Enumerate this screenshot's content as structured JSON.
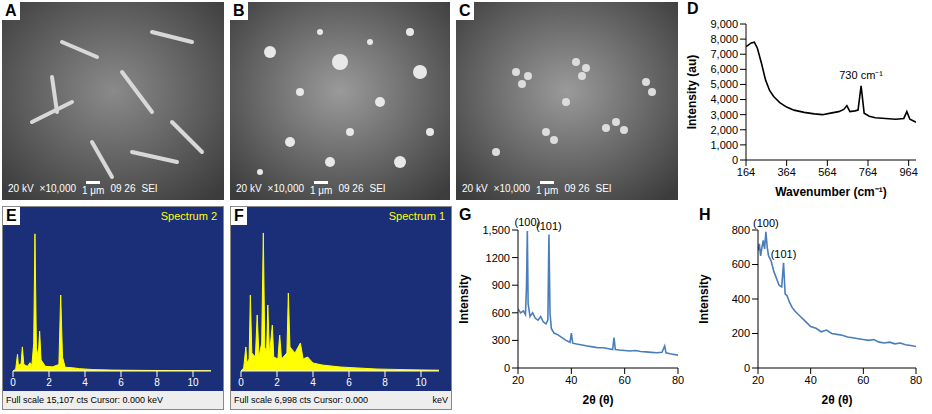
{
  "images": [
    {
      "panel": "A",
      "caption": [
        "20 kV",
        "×10,000",
        "1 μm",
        "09 26",
        "SEI"
      ]
    },
    {
      "panel": "B",
      "caption": [
        "20 kV",
        "×10,000",
        "1 μm",
        "09 26",
        "SEI"
      ]
    },
    {
      "panel": "C",
      "caption": [
        "20 kV",
        "×10,000",
        "1 μm",
        "09 26",
        "SEI"
      ]
    }
  ],
  "chart_data": [
    {
      "panel": "D",
      "type": "line",
      "color": "#000000",
      "x_label": "Wavenumber (cm⁻¹)",
      "y_label": "Intensity (au)",
      "x": [
        164,
        175,
        190,
        205,
        220,
        240,
        260,
        280,
        300,
        330,
        364,
        400,
        450,
        500,
        540,
        580,
        620,
        645,
        660,
        675,
        700,
        715,
        730,
        745,
        770,
        800,
        850,
        900,
        940,
        955,
        970,
        1000
      ],
      "values": [
        7500,
        7600,
        7750,
        7800,
        7400,
        6400,
        5300,
        4600,
        4200,
        3800,
        3500,
        3300,
        3150,
        3050,
        3000,
        3100,
        3200,
        3350,
        3600,
        3200,
        3250,
        3300,
        4900,
        3100,
        2900,
        2800,
        2750,
        2700,
        2750,
        3200,
        2700,
        2500
      ],
      "xlim": [
        164,
        1000
      ],
      "xticks": [
        164,
        364,
        564,
        764,
        964
      ],
      "ylim": [
        0,
        9000
      ],
      "yticks": [
        0,
        {
          "value": 1000,
          "label": "1,000"
        },
        {
          "value": 2000,
          "label": "2,000"
        },
        {
          "value": 3000,
          "label": "3,000"
        },
        {
          "value": 4000,
          "label": "4,000"
        },
        {
          "value": 5000,
          "label": "5,000"
        },
        {
          "value": 6000,
          "label": "6,000"
        },
        {
          "value": 7000,
          "label": "7,000"
        },
        {
          "value": 8000,
          "label": "8,000"
        },
        {
          "value": 9000,
          "label": "9,000"
        }
      ],
      "grid": false,
      "annotations": [
        {
          "text": "730 cm⁻¹",
          "x": 730,
          "y": 5000
        }
      ]
    },
    {
      "panel": "E",
      "type": "area",
      "title": "Spectrum 2",
      "footer": "Full scale 15,107 cts Cursor: 0.000 keV",
      "color": "#ffff00",
      "x": [
        0,
        0.15,
        0.25,
        0.3,
        0.45,
        0.52,
        0.6,
        0.8,
        0.95,
        1.05,
        1.15,
        1.22,
        1.3,
        1.4,
        1.48,
        1.56,
        1.8,
        2.2,
        2.55,
        2.65,
        2.75,
        2.9,
        3.3,
        3.7,
        4.5,
        5.5,
        6.5,
        7.5,
        8.5,
        9.5,
        11
      ],
      "values": [
        0,
        200,
        1800,
        600,
        800,
        2600,
        700,
        500,
        900,
        600,
        3000,
        14800,
        2500,
        1500,
        4300,
        1200,
        500,
        450,
        700,
        8200,
        1500,
        400,
        350,
        250,
        150,
        100,
        80,
        60,
        50,
        40,
        30
      ],
      "xlim": [
        0,
        11
      ],
      "xticks": [
        0,
        2,
        4,
        6,
        8,
        10
      ],
      "ylim": [
        0,
        15107
      ],
      "tick_labels": "x",
      "grid": false
    },
    {
      "panel": "F",
      "type": "area",
      "title": "Spectrum 1",
      "footer": "Full scale 6,998 cts Cursor: 0.000",
      "footer_unit": "keV",
      "color": "#ffff00",
      "x": [
        0,
        0.15,
        0.27,
        0.33,
        0.45,
        0.52,
        0.6,
        0.8,
        0.9,
        1.0,
        1.15,
        1.24,
        1.32,
        1.42,
        1.49,
        1.58,
        1.74,
        1.82,
        2.05,
        2.15,
        2.25,
        2.55,
        2.63,
        2.72,
        3.0,
        3.3,
        3.45,
        3.7,
        4.0,
        4.5,
        5.5,
        6.5,
        7.5,
        8.5,
        9.5,
        11
      ],
      "values": [
        0,
        150,
        1200,
        400,
        600,
        3800,
        900,
        700,
        2800,
        700,
        1400,
        6900,
        1200,
        900,
        3300,
        800,
        2300,
        700,
        600,
        1800,
        600,
        900,
        3900,
        1200,
        900,
        1400,
        600,
        700,
        400,
        300,
        200,
        150,
        100,
        80,
        60,
        40
      ],
      "xlim": [
        0,
        11
      ],
      "xticks": [
        0,
        2,
        4,
        6,
        8,
        10
      ],
      "ylim": [
        0,
        6998
      ],
      "tick_labels": "x",
      "grid": false
    },
    {
      "panel": "G",
      "type": "line",
      "color": "#4a7ebb",
      "x_label": "2θ (θ)",
      "y_label": "Intensity",
      "x": [
        20,
        21,
        22,
        22.8,
        23.2,
        23.5,
        23.8,
        24.5,
        25.5,
        26.5,
        27.5,
        28.5,
        29.5,
        30.5,
        31.2,
        31.6,
        32,
        32.5,
        33.5,
        35,
        36.5,
        38,
        39.5,
        40,
        40.5,
        42,
        44,
        46,
        48,
        50,
        52,
        54,
        55.5,
        56,
        56.5,
        58,
        60,
        62,
        64,
        66,
        68,
        70,
        72,
        74,
        75,
        75.5,
        77,
        78,
        80
      ],
      "values": [
        640,
        600,
        620,
        580,
        900,
        1490,
        700,
        560,
        600,
        540,
        520,
        560,
        500,
        480,
        520,
        1450,
        600,
        430,
        380,
        360,
        330,
        300,
        280,
        380,
        270,
        260,
        250,
        240,
        230,
        220,
        220,
        210,
        200,
        330,
        200,
        195,
        190,
        185,
        190,
        180,
        175,
        170,
        165,
        170,
        240,
        165,
        155,
        150,
        140
      ],
      "xlim": [
        20,
        80
      ],
      "xticks": [
        20,
        40,
        60,
        80
      ],
      "ylim": [
        0,
        1500
      ],
      "yticks": [
        0,
        300,
        600,
        900,
        1200,
        {
          "value": 1500,
          "label": "1,500"
        }
      ],
      "grid": false,
      "annotations": [
        {
          "text": "(100)",
          "x": 23.5,
          "y": 1490
        },
        {
          "text": "(101)",
          "x": 31.6,
          "y": 1450
        }
      ]
    },
    {
      "panel": "H",
      "type": "line",
      "color": "#4a7ebb",
      "x_label": "2θ (θ)",
      "y_label": "Intensity",
      "x": [
        20,
        20.5,
        21,
        21.5,
        22,
        22.5,
        23,
        23.5,
        24,
        25,
        26,
        27,
        28,
        29,
        29.7,
        30.3,
        31,
        32,
        33,
        34,
        36,
        38,
        40,
        42,
        44,
        46,
        48,
        50,
        52,
        54,
        56,
        58,
        60,
        62,
        64,
        66,
        68,
        70,
        72,
        74,
        76,
        78,
        80
      ],
      "values": [
        680,
        720,
        650,
        700,
        740,
        690,
        790,
        700,
        650,
        620,
        560,
        520,
        480,
        470,
        610,
        430,
        420,
        380,
        350,
        330,
        300,
        270,
        240,
        230,
        210,
        220,
        200,
        195,
        190,
        180,
        175,
        170,
        165,
        160,
        165,
        150,
        145,
        150,
        140,
        145,
        135,
        130,
        125
      ],
      "xlim": [
        20,
        80
      ],
      "xticks": [
        20,
        40,
        60,
        80
      ],
      "ylim": [
        0,
        800
      ],
      "yticks": [
        0,
        200,
        400,
        600,
        800
      ],
      "grid": false,
      "annotations": [
        {
          "text": "(100)",
          "x": 23,
          "y": 790
        },
        {
          "text": "(101)",
          "x": 29.7,
          "y": 610
        }
      ]
    }
  ]
}
